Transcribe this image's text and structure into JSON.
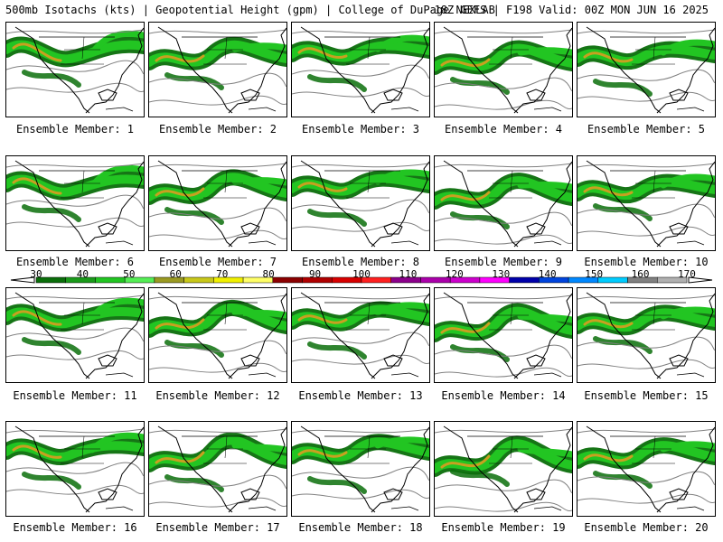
{
  "header": {
    "left_text": "500mb Isotachs (kts) | Geopotential Height (gpm) | College of DuPage NEXLAB",
    "right_text": "18Z GEFS | F198 Valid: 00Z MON JUN 16 2025"
  },
  "members": [
    {
      "label": "Ensemble Member: 1"
    },
    {
      "label": "Ensemble Member: 2"
    },
    {
      "label": "Ensemble Member: 3"
    },
    {
      "label": "Ensemble Member: 4"
    },
    {
      "label": "Ensemble Member: 5"
    },
    {
      "label": "Ensemble Member: 6"
    },
    {
      "label": "Ensemble Member: 7"
    },
    {
      "label": "Ensemble Member: 8"
    },
    {
      "label": "Ensemble Member: 9"
    },
    {
      "label": "Ensemble Member: 10"
    },
    {
      "label": "Ensemble Member: 11"
    },
    {
      "label": "Ensemble Member: 12"
    },
    {
      "label": "Ensemble Member: 13"
    },
    {
      "label": "Ensemble Member: 14"
    },
    {
      "label": "Ensemble Member: 15"
    },
    {
      "label": "Ensemble Member: 16"
    },
    {
      "label": "Ensemble Member: 17"
    },
    {
      "label": "Ensemble Member: 18"
    },
    {
      "label": "Ensemble Member: 19"
    },
    {
      "label": "Ensemble Member: 20"
    }
  ],
  "colorbar": {
    "labels": [
      "30",
      "40",
      "50",
      "60",
      "70",
      "80",
      "90",
      "100",
      "110",
      "120",
      "130",
      "140",
      "150",
      "160",
      "170"
    ],
    "colors": [
      "#0a6e0a",
      "#1a9a1a",
      "#22c522",
      "#55ee55",
      "#9a9a22",
      "#c8c81a",
      "#f0f000",
      "#ffff66",
      "#8b0000",
      "#b00000",
      "#d80000",
      "#ff2020",
      "#8b008b",
      "#aa00aa",
      "#cc00cc",
      "#ff00ff",
      "#0000aa",
      "#0044dd",
      "#0088ff",
      "#00ccff",
      "#808080",
      "#b0b0b0"
    ]
  },
  "colors": {
    "isotach_dark": "#0a6e0a",
    "isotach_mid": "#22c522",
    "isotach_core": "#c8a020",
    "height_contour": "#808080",
    "coastline": "#000000"
  }
}
